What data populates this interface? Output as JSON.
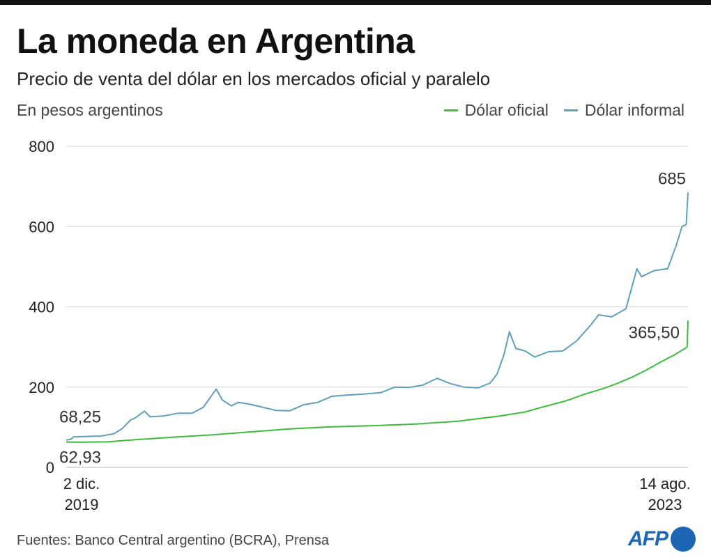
{
  "header": {
    "title": "La moneda en Argentina",
    "subtitle": "Precio de venta del dólar en los mercados oficial y paralelo",
    "unit": "En pesos argentinos"
  },
  "legend": [
    {
      "label": "Dólar oficial",
      "color": "#3dbb3d"
    },
    {
      "label": "Dólar informal",
      "color": "#5f9fbb"
    }
  ],
  "footer": {
    "source": "Fuentes: Banco Central argentino (BCRA), Prensa",
    "logo": "AFP"
  },
  "chart_data": {
    "type": "line",
    "x_start_label": [
      "2 dic.",
      "2019"
    ],
    "x_end_label": [
      "14 ago.",
      "2023"
    ],
    "x_start": "2019-12-02",
    "x_end": "2023-08-14",
    "ylim": [
      0,
      800
    ],
    "y_ticks": [
      "0",
      "200",
      "400",
      "600",
      "800"
    ],
    "grid": true,
    "annotations": {
      "informal_start": "68,25",
      "oficial_start": "62,93",
      "informal_end": "685",
      "oficial_end": "365,50"
    },
    "series": [
      {
        "name": "Dólar oficial",
        "color": "#3dbb3d",
        "points": [
          [
            "2019-12-02",
            62.93
          ],
          [
            "2020-01-15",
            63.0
          ],
          [
            "2020-03-01",
            63.5
          ],
          [
            "2020-05-01",
            69
          ],
          [
            "2020-08-01",
            76
          ],
          [
            "2020-10-15",
            81
          ],
          [
            "2021-01-01",
            88
          ],
          [
            "2021-04-01",
            96
          ],
          [
            "2021-07-01",
            101
          ],
          [
            "2021-10-01",
            104
          ],
          [
            "2022-01-01",
            108
          ],
          [
            "2022-04-01",
            115
          ],
          [
            "2022-07-01",
            128
          ],
          [
            "2022-08-25",
            138
          ],
          [
            "2022-10-01",
            150
          ],
          [
            "2022-11-20",
            165
          ],
          [
            "2023-01-01",
            182
          ],
          [
            "2023-02-15",
            198
          ],
          [
            "2023-03-15",
            210
          ],
          [
            "2023-04-15",
            225
          ],
          [
            "2023-05-15",
            242
          ],
          [
            "2023-06-15",
            262
          ],
          [
            "2023-07-15",
            280
          ],
          [
            "2023-08-10",
            298
          ],
          [
            "2023-08-12",
            300
          ],
          [
            "2023-08-14",
            365.5
          ]
        ]
      },
      {
        "name": "Dólar informal",
        "color": "#5f9fbb",
        "points": [
          [
            "2019-12-02",
            68.25
          ],
          [
            "2019-12-12",
            70
          ],
          [
            "2019-12-18",
            76
          ],
          [
            "2020-01-15",
            77
          ],
          [
            "2020-02-15",
            78
          ],
          [
            "2020-03-15",
            84
          ],
          [
            "2020-04-01",
            96
          ],
          [
            "2020-04-20",
            118
          ],
          [
            "2020-05-01",
            124
          ],
          [
            "2020-05-20",
            140
          ],
          [
            "2020-06-01",
            126
          ],
          [
            "2020-07-01",
            128
          ],
          [
            "2020-08-01",
            135
          ],
          [
            "2020-09-01",
            135
          ],
          [
            "2020-09-25",
            150
          ],
          [
            "2020-10-23",
            195
          ],
          [
            "2020-11-05",
            168
          ],
          [
            "2020-11-25",
            153
          ],
          [
            "2020-12-10",
            162
          ],
          [
            "2021-01-01",
            158
          ],
          [
            "2021-02-01",
            150
          ],
          [
            "2021-03-01",
            142
          ],
          [
            "2021-04-01",
            141
          ],
          [
            "2021-05-01",
            156
          ],
          [
            "2021-06-01",
            162
          ],
          [
            "2021-07-01",
            177
          ],
          [
            "2021-08-01",
            180
          ],
          [
            "2021-09-01",
            182
          ],
          [
            "2021-10-15",
            186
          ],
          [
            "2021-11-15",
            200
          ],
          [
            "2021-12-15",
            199
          ],
          [
            "2022-01-15",
            205
          ],
          [
            "2022-02-15",
            222
          ],
          [
            "2022-03-15",
            209
          ],
          [
            "2022-04-15",
            200
          ],
          [
            "2022-05-15",
            198
          ],
          [
            "2022-06-10",
            210
          ],
          [
            "2022-06-25",
            232
          ],
          [
            "2022-07-10",
            280
          ],
          [
            "2022-07-22",
            338
          ],
          [
            "2022-08-05",
            296
          ],
          [
            "2022-08-25",
            290
          ],
          [
            "2022-09-15",
            275
          ],
          [
            "2022-10-15",
            288
          ],
          [
            "2022-11-15",
            290
          ],
          [
            "2022-12-15",
            315
          ],
          [
            "2023-01-15",
            355
          ],
          [
            "2023-02-01",
            380
          ],
          [
            "2023-03-01",
            375
          ],
          [
            "2023-04-01",
            395
          ],
          [
            "2023-04-25",
            495
          ],
          [
            "2023-05-05",
            475
          ],
          [
            "2023-06-01",
            490
          ],
          [
            "2023-07-01",
            495
          ],
          [
            "2023-07-20",
            555
          ],
          [
            "2023-08-01",
            600
          ],
          [
            "2023-08-10",
            605
          ],
          [
            "2023-08-14",
            685
          ]
        ]
      }
    ]
  }
}
